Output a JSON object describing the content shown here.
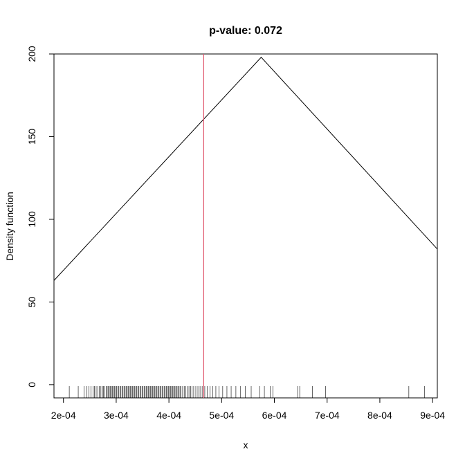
{
  "chart_data": {
    "type": "line",
    "title": "p-value: 0.072",
    "xlabel": "x",
    "ylabel": "Density function",
    "xlim": [
      0.000182,
      0.000909
    ],
    "ylim": [
      -8,
      200
    ],
    "x_ticks": [
      0.0002,
      0.0003,
      0.0004,
      0.0005,
      0.0006,
      0.0007,
      0.0008,
      0.0009
    ],
    "x_tick_labels": [
      "2e-04",
      "3e-04",
      "4e-04",
      "5e-04",
      "6e-04",
      "7e-04",
      "8e-04",
      "9e-04"
    ],
    "y_ticks": [
      0,
      50,
      100,
      150,
      200
    ],
    "y_tick_labels": [
      "0",
      "50",
      "100",
      "150",
      "200"
    ],
    "series": [
      {
        "x": [
          0.000182,
          0.000575,
          0.000909
        ],
        "y": [
          63,
          198,
          82
        ],
        "color": "#000000"
      }
    ],
    "vline": {
      "x": 0.000466,
      "color": "#df536b"
    },
    "rug": [
      0.000211,
      0.000228,
      0.000239,
      0.000244,
      0.000248,
      0.000252,
      0.000256,
      0.000259,
      0.000262,
      0.000265,
      0.000268,
      0.000271,
      0.000274,
      0.000276,
      0.000278,
      0.000281,
      0.000283,
      0.000285,
      0.000287,
      0.000289,
      0.000291,
      0.000293,
      0.000295,
      0.000297,
      0.000299,
      0.000301,
      0.000303,
      0.000305,
      0.000307,
      0.000309,
      0.000311,
      0.000313,
      0.000315,
      0.000317,
      0.000319,
      0.000321,
      0.000323,
      0.000325,
      0.000327,
      0.000329,
      0.000331,
      0.000333,
      0.000335,
      0.000337,
      0.000339,
      0.000341,
      0.000343,
      0.000345,
      0.000347,
      0.000349,
      0.000351,
      0.000353,
      0.000355,
      0.000357,
      0.000359,
      0.000361,
      0.000363,
      0.000365,
      0.000367,
      0.000369,
      0.000371,
      0.000373,
      0.000375,
      0.000377,
      0.000379,
      0.000381,
      0.000383,
      0.000385,
      0.000387,
      0.000389,
      0.000391,
      0.000393,
      0.000395,
      0.000397,
      0.000399,
      0.000401,
      0.000403,
      0.000405,
      0.000407,
      0.000409,
      0.000411,
      0.000413,
      0.000415,
      0.000417,
      0.000419,
      0.000421,
      0.000423,
      0.000426,
      0.000429,
      0.000432,
      0.000435,
      0.000438,
      0.000441,
      0.000444,
      0.000447,
      0.000451,
      0.000455,
      0.000459,
      0.000463,
      0.000468,
      0.000473,
      0.000478,
      0.000483,
      0.000489,
      0.000495,
      0.000502,
      0.00051,
      0.000518,
      0.000527,
      0.000536,
      0.000545,
      0.000556,
      0.000572,
      0.000581,
      0.000592,
      0.000597,
      0.000644,
      0.000648,
      0.000672,
      0.000697,
      0.000855,
      0.000885
    ],
    "rug_color": "#000000",
    "grid": false,
    "legend": "none"
  }
}
